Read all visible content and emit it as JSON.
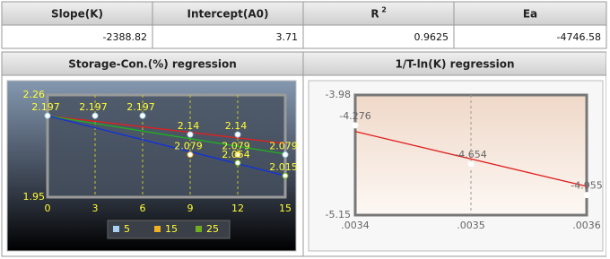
{
  "table": {
    "headers": [
      "Slope(K)",
      "Intercept(A0)",
      {
        "text": "R",
        "superscript": "2"
      },
      "Ea"
    ],
    "values": [
      -2388.82,
      3.71,
      0.9625,
      -4746.58
    ]
  },
  "chart_data": [
    {
      "type": "scatter",
      "title": "Storage-Con.(%) regression",
      "x": [
        0,
        3,
        6,
        9,
        12,
        15
      ],
      "series": [
        {
          "name": "5",
          "color": "#a8d0f0",
          "values": [
            2.197,
            2.197,
            2.197,
            2.14,
            2.14,
            2.079
          ]
        },
        {
          "name": "15",
          "color": "#f0b020",
          "values": [
            null,
            null,
            null,
            2.079,
            2.079,
            null
          ]
        },
        {
          "name": "25",
          "color": "#70b020",
          "values": [
            null,
            null,
            null,
            null,
            2.054,
            2.015
          ]
        }
      ],
      "trend_lines": [
        {
          "color": "#e02020",
          "values": [
            2.197,
            2.113
          ]
        },
        {
          "color": "#20b020",
          "values": [
            2.197,
            2.081
          ]
        },
        {
          "color": "#1030e0",
          "values": [
            2.197,
            2.015
          ]
        }
      ],
      "xlim": [
        0,
        15
      ],
      "ylim": [
        1.95,
        2.26
      ],
      "xticks": [
        0,
        3,
        6,
        9,
        12,
        15
      ],
      "yticks": [
        1.95,
        2.26
      ],
      "grid": "x"
    },
    {
      "type": "scatter",
      "title": "1/T-ln(K) regression",
      "x": [
        0.0034,
        0.0035,
        0.0036
      ],
      "series": [
        {
          "color": "#ffffff",
          "values": [
            -4.276,
            -4.654,
            -4.955
          ]
        }
      ],
      "trend_lines": [
        {
          "color": "#e02020",
          "values": [
            -4.336,
            -4.87
          ]
        }
      ],
      "xlim": [
        0.0034,
        0.0036
      ],
      "ylim": [
        -5.15,
        -3.98
      ],
      "xticks": [
        {
          "value": 0.0034,
          "label": ".0034"
        },
        {
          "value": 0.0035,
          "label": ".0035"
        },
        {
          "value": 0.0036,
          "label": ".0036"
        }
      ],
      "yticks": [
        -5.15,
        -3.98
      ],
      "grid": "x"
    }
  ]
}
